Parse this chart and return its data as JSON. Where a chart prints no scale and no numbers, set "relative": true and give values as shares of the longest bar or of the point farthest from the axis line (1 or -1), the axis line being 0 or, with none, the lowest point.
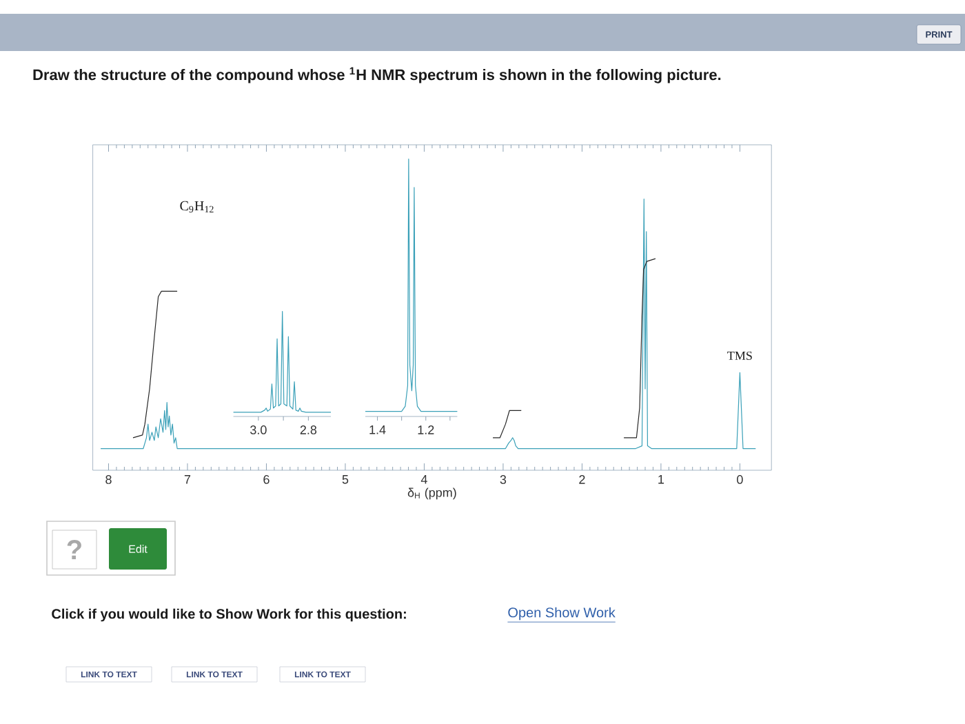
{
  "chart_data": [
    {
      "type": "line",
      "title": "Draw the structure of the compound whose $^{1}$H NMR spectrum is shown in the following picture.",
      "xlabel": "δ$_{H}$ (ppm)",
      "xlim": [
        8.2,
        -0.4
      ],
      "xticks": [
        8,
        7,
        6,
        5,
        4,
        3,
        2,
        1,
        0
      ],
      "relative": true,
      "series": [
        {
          "color": "#3aa0b8",
          "x": [
            8.1,
            7.56,
            7.52,
            7.5,
            7.48,
            7.45,
            7.42,
            7.4,
            7.37,
            7.34,
            7.31,
            7.29,
            7.275,
            7.26,
            7.245,
            7.23,
            7.21,
            7.19,
            7.17,
            7.15,
            7.13,
            2.97,
            2.93,
            2.9,
            2.88,
            2.86,
            2.84,
            2.81,
            1.32,
            1.24,
            1.215,
            1.2,
            1.185,
            1.17,
            1.12,
            0.04,
            0.0,
            -0.04,
            -0.2
          ],
          "values": [
            0.08,
            0.08,
            0.12,
            0.17,
            0.11,
            0.14,
            0.11,
            0.16,
            0.12,
            0.19,
            0.14,
            0.22,
            0.15,
            0.25,
            0.16,
            0.2,
            0.13,
            0.17,
            0.1,
            0.12,
            0.08,
            0.08,
            0.1,
            0.11,
            0.12,
            0.11,
            0.09,
            0.08,
            0.08,
            0.09,
            1.0,
            0.3,
            0.88,
            0.09,
            0.08,
            0.08,
            0.36,
            0.08,
            0.08
          ]
        },
        {
          "color": "#262626",
          "x": [
            7.69,
            7.57,
            7.54,
            7.48,
            7.42,
            7.37,
            7.33,
            7.13
          ],
          "values": [
            0.12,
            0.13,
            0.17,
            0.3,
            0.49,
            0.64,
            0.66,
            0.66
          ]
        },
        {
          "color": "#262626",
          "x": [
            3.13,
            3.04,
            2.97,
            2.92,
            2.87,
            2.77
          ],
          "values": [
            0.12,
            0.12,
            0.17,
            0.22,
            0.22,
            0.22
          ]
        },
        {
          "color": "#262626",
          "x": [
            1.47,
            1.31,
            1.27,
            1.24,
            1.22,
            1.18,
            1.07
          ],
          "values": [
            0.12,
            0.12,
            0.23,
            0.57,
            0.74,
            0.77,
            0.78
          ]
        }
      ],
      "annotations": [
        "C$_{9}$H$_{12}$",
        {
          "text": "TMS",
          "x": 0,
          "y": 0.36
        }
      ]
    },
    {
      "type": "line",
      "xlim": [
        3.1,
        2.71
      ],
      "xticks": [
        {
          "value": 3.0,
          "label": "3.0"
        },
        {
          "value": 2.9,
          "label": null
        },
        {
          "value": 2.8,
          "label": "2.8"
        }
      ],
      "relative": true,
      "series": [
        {
          "color": "#3aa0b8",
          "x": [
            3.1,
            2.99,
            2.975,
            2.969,
            2.963,
            2.952,
            2.946,
            2.94,
            2.931,
            2.925,
            2.919,
            2.91,
            2.904,
            2.898,
            2.886,
            2.88,
            2.874,
            2.862,
            2.856,
            2.85,
            2.84,
            2.834,
            2.828,
            2.81,
            2.71
          ],
          "values": [
            0.04,
            0.04,
            0.06,
            0.08,
            0.05,
            0.07,
            0.31,
            0.08,
            0.1,
            0.74,
            0.1,
            0.12,
            1.0,
            0.12,
            0.1,
            0.76,
            0.1,
            0.07,
            0.33,
            0.06,
            0.05,
            0.08,
            0.05,
            0.04,
            0.04
          ]
        }
      ]
    },
    {
      "type": "line",
      "xlim": [
        1.45,
        1.07
      ],
      "xticks": [
        {
          "value": 1.4,
          "label": "1.4"
        },
        {
          "value": 1.3,
          "label": null
        },
        {
          "value": 1.2,
          "label": "1.2"
        },
        {
          "value": 1.1,
          "label": null
        }
      ],
      "relative": true,
      "series": [
        {
          "color": "#3aa0b8",
          "x": [
            1.45,
            1.3,
            1.285,
            1.275,
            1.271,
            1.266,
            1.258,
            1.252,
            1.248,
            1.243,
            1.235,
            1.22,
            1.07
          ],
          "values": [
            0.02,
            0.02,
            0.04,
            0.12,
            1.0,
            0.2,
            0.1,
            0.2,
            0.89,
            0.12,
            0.04,
            0.02,
            0.02
          ]
        }
      ]
    },
    {
      "type": "other",
      "annotations": [
        "PRINT",
        "?",
        "Edit",
        "Click if you would like to Show Work for this question:",
        "Open Show Work",
        "LINK TO TEXT",
        "LINK TO TEXT",
        "LINK TO TEXT"
      ]
    }
  ]
}
